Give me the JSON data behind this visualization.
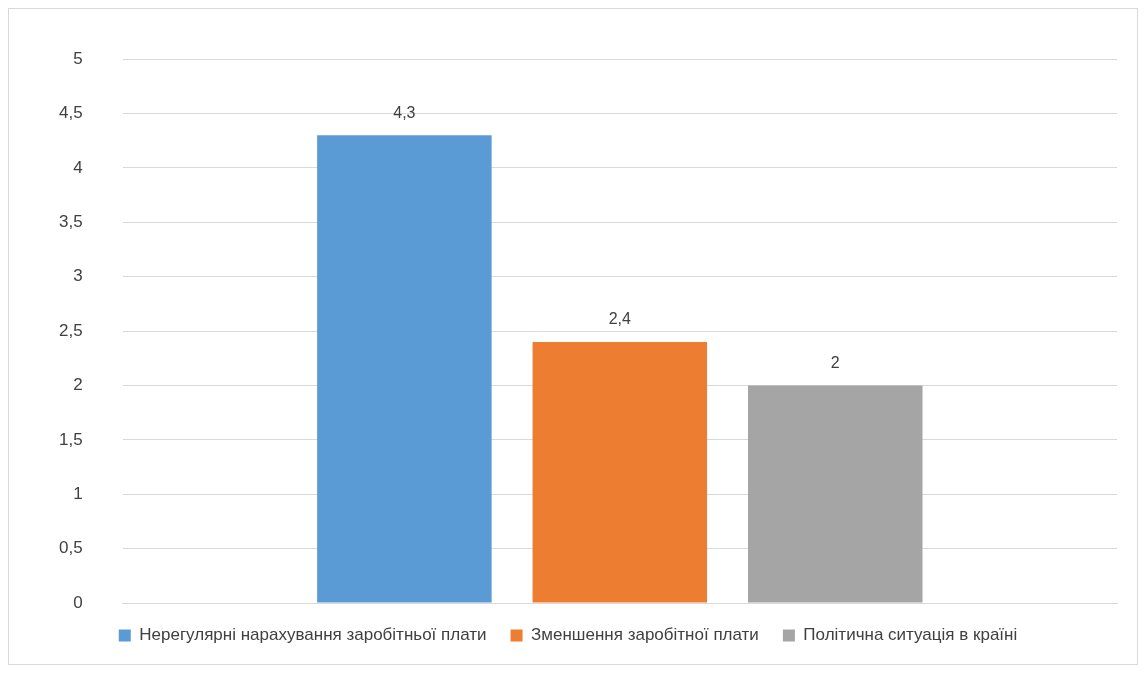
{
  "chart_data": {
    "type": "bar",
    "categories": [
      null
    ],
    "series": [
      {
        "name": "Нерегулярні нарахування заробітньої плати",
        "color": "#5b9bd5",
        "values": [
          4.3
        ],
        "value_labels": [
          "4,3"
        ]
      },
      {
        "name": "Зменшення заробітної плати",
        "color": "#ed7d31",
        "values": [
          2.4
        ],
        "value_labels": [
          "2,4"
        ]
      },
      {
        "name": "Політична ситуація в країні",
        "color": "#a5a5a5",
        "values": [
          2
        ],
        "value_labels": [
          "2"
        ]
      }
    ],
    "ylim": [
      0,
      5
    ],
    "yticks": [
      0,
      {
        "value": 0.5,
        "label": "0,5"
      },
      1,
      {
        "value": 1.5,
        "label": "1,5"
      },
      2,
      {
        "value": 2.5,
        "label": "2,5"
      },
      3,
      {
        "value": 3.5,
        "label": "3,5"
      },
      4,
      {
        "value": 4.5,
        "label": "4,5"
      },
      5
    ],
    "grid": "y",
    "legend": "bottom"
  }
}
